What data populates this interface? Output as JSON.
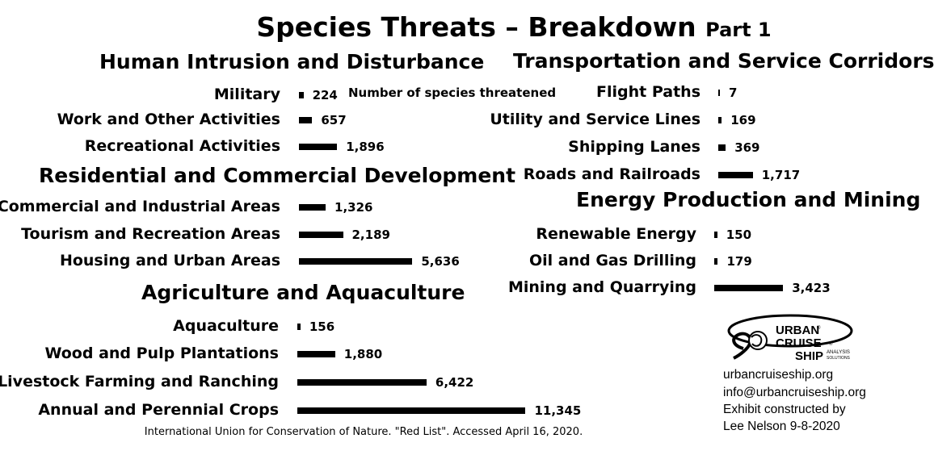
{
  "title": {
    "main": "Species Threats – Breakdown",
    "part": "Part 1"
  },
  "note": "Number of species threatened",
  "source": "International Union for Conservation of Nature. \"Red List\". Accessed April 16, 2020.",
  "logo": {
    "line1": "URBAN",
    "line2": "CRUISE",
    "line3": "SHIP",
    "tag1": "ANALYSIS",
    "tag2": "SOLUTIONS",
    "mark": "®"
  },
  "contact": {
    "website": "urbancruiseship.org",
    "email": "info@urbancruiseship.org",
    "credit1": "Exhibit constructed by",
    "credit2": "Lee Nelson 9-8-2020"
  },
  "chart_data": {
    "type": "bar",
    "orientation": "horizontal",
    "title": "Species Threats – Breakdown Part 1",
    "value_label": "Number of species threatened",
    "bar_color": "#000000",
    "groups": [
      {
        "name": "Human Intrusion and Disturbance",
        "categories": [
          "Military",
          "Work and Other Activities",
          "Recreational Activities"
        ],
        "values": [
          224,
          657,
          1896
        ],
        "value_labels": [
          "224",
          "657",
          "1,896"
        ]
      },
      {
        "name": "Residential and Commercial Development",
        "categories": [
          "Commercial and Industrial Areas",
          "Tourism and Recreation Areas",
          "Housing and Urban Areas"
        ],
        "values": [
          1326,
          2189,
          5636
        ],
        "value_labels": [
          "1,326",
          "2,189",
          "5,636"
        ]
      },
      {
        "name": "Agriculture and Aquaculture",
        "categories": [
          "Aquaculture",
          "Wood and Pulp Plantations",
          "Livestock Farming and Ranching",
          "Annual and Perennial Crops"
        ],
        "values": [
          156,
          1880,
          6422,
          11345
        ],
        "value_labels": [
          "156",
          "1,880",
          "6,422",
          "11,345"
        ]
      },
      {
        "name": "Transportation and Service Corridors",
        "categories": [
          "Flight Paths",
          "Utility and Service Lines",
          "Shipping Lanes",
          "Roads and Railroads"
        ],
        "values": [
          7,
          169,
          369,
          1717
        ],
        "value_labels": [
          "7",
          "169",
          "369",
          "1,717"
        ]
      },
      {
        "name": "Energy Production and Mining",
        "categories": [
          "Renewable Energy",
          "Oil and Gas Drilling",
          "Mining and Quarrying"
        ],
        "values": [
          150,
          179,
          3423
        ],
        "value_labels": [
          "150",
          "179",
          "3,423"
        ]
      }
    ]
  }
}
